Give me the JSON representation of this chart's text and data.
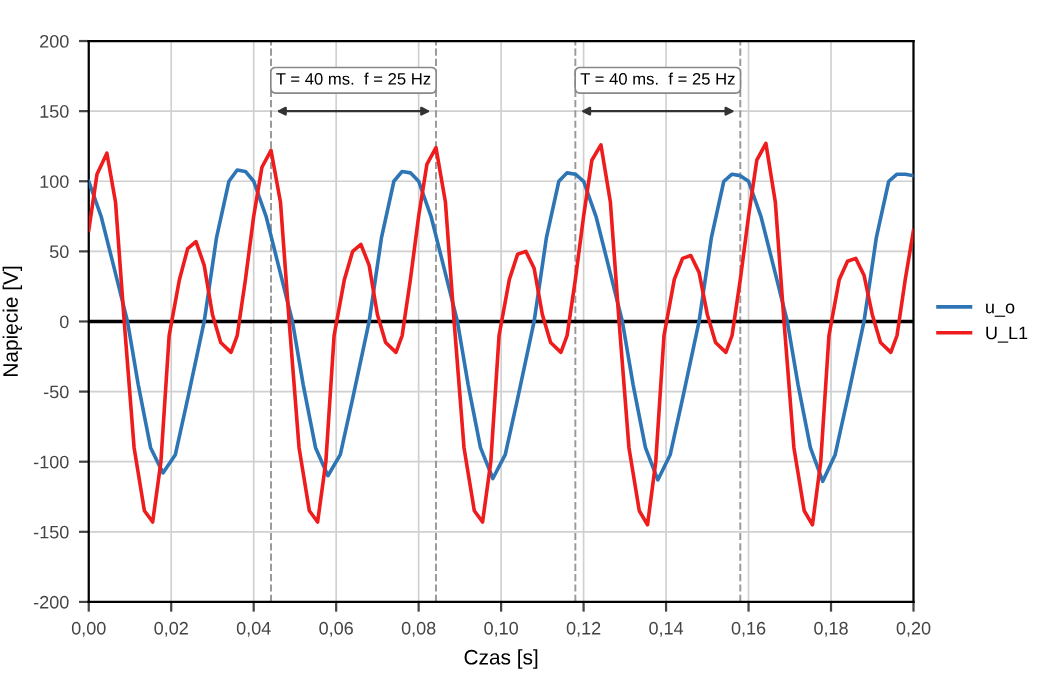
{
  "chart_data": {
    "type": "line",
    "xlabel": "Czas [s]",
    "ylabel": "Napięcie [V]",
    "xlim": [
      0,
      0.2
    ],
    "ylim": [
      -200,
      200
    ],
    "xticks": [
      {
        "value": 0,
        "label": "0,00"
      },
      {
        "value": 0.02,
        "label": "0,02"
      },
      {
        "value": 0.04,
        "label": "0,04"
      },
      {
        "value": 0.06,
        "label": "0,06"
      },
      {
        "value": 0.08,
        "label": "0,08"
      },
      {
        "value": 0.1,
        "label": "0,10"
      },
      {
        "value": 0.12,
        "label": "0,12"
      },
      {
        "value": 0.14,
        "label": "0,14"
      },
      {
        "value": 0.16,
        "label": "0,16"
      },
      {
        "value": 0.18,
        "label": "0,18"
      },
      {
        "value": 0.2,
        "label": "0,20"
      }
    ],
    "yticks": [
      -200,
      -150,
      -100,
      -50,
      0,
      50,
      100,
      150,
      200
    ],
    "grid": true,
    "legend": "right",
    "line_style": "solid",
    "series": [
      {
        "name": "u_o",
        "color": "#2e75b6",
        "x": [
          0,
          0.003,
          0.006,
          0.0094,
          0.012,
          0.015,
          0.018,
          0.021,
          0.024,
          0.028,
          0.031,
          0.034,
          0.036,
          0.038,
          0.04,
          0.043,
          0.046,
          0.0494,
          0.052,
          0.055,
          0.058,
          0.061,
          0.064,
          0.068,
          0.071,
          0.074,
          0.076,
          0.078,
          0.08,
          0.083,
          0.086,
          0.0894,
          0.092,
          0.095,
          0.098,
          0.101,
          0.104,
          0.108,
          0.111,
          0.114,
          0.116,
          0.118,
          0.12,
          0.123,
          0.126,
          0.1294,
          0.132,
          0.135,
          0.138,
          0.141,
          0.144,
          0.148,
          0.151,
          0.154,
          0.156,
          0.158,
          0.16,
          0.163,
          0.166,
          0.1694,
          0.172,
          0.175,
          0.178,
          0.181,
          0.184,
          0.188,
          0.191,
          0.194,
          0.196,
          0.198,
          0.2
        ],
        "values": [
          100,
          75,
          40,
          0,
          -45,
          -90,
          -108,
          -95,
          -55,
          0,
          60,
          100,
          108,
          107,
          100,
          75,
          40,
          0,
          -45,
          -90,
          -110,
          -95,
          -55,
          0,
          60,
          100,
          107,
          106,
          100,
          75,
          40,
          0,
          -45,
          -90,
          -112,
          -95,
          -55,
          0,
          60,
          100,
          106,
          105,
          100,
          75,
          40,
          0,
          -45,
          -90,
          -113,
          -95,
          -55,
          0,
          60,
          100,
          105,
          104,
          100,
          75,
          40,
          0,
          -45,
          -90,
          -114,
          -95,
          -55,
          0,
          60,
          100,
          105,
          105,
          104
        ]
      },
      {
        "name": "U_L1",
        "color": "#ee1c1c",
        "x": [
          0,
          0.002,
          0.0044,
          0.0065,
          0.0086,
          0.011,
          0.0135,
          0.0155,
          0.0175,
          0.0195,
          0.022,
          0.024,
          0.026,
          0.028,
          0.03,
          0.032,
          0.0345,
          0.036,
          0.038,
          0.04,
          0.042,
          0.0442,
          0.0465,
          0.0486,
          0.051,
          0.0535,
          0.0555,
          0.0575,
          0.0595,
          0.062,
          0.064,
          0.066,
          0.068,
          0.07,
          0.072,
          0.0745,
          0.076,
          0.078,
          0.08,
          0.082,
          0.0842,
          0.0865,
          0.0886,
          0.091,
          0.0935,
          0.0955,
          0.0975,
          0.0995,
          0.102,
          0.104,
          0.106,
          0.108,
          0.11,
          0.112,
          0.1145,
          0.116,
          0.118,
          0.12,
          0.122,
          0.1242,
          0.1265,
          0.1286,
          0.131,
          0.1335,
          0.1355,
          0.1375,
          0.1395,
          0.142,
          0.144,
          0.146,
          0.148,
          0.15,
          0.152,
          0.1545,
          0.156,
          0.158,
          0.16,
          0.162,
          0.1642,
          0.1665,
          0.1686,
          0.171,
          0.1735,
          0.1755,
          0.1775,
          0.1795,
          0.182,
          0.184,
          0.186,
          0.188,
          0.19,
          0.192,
          0.1945,
          0.196,
          0.198,
          0.2
        ],
        "values": [
          65,
          105,
          120,
          85,
          0,
          -90,
          -135,
          -143,
          -100,
          -10,
          30,
          52,
          57,
          40,
          5,
          -15,
          -22,
          -10,
          30,
          75,
          110,
          122,
          85,
          0,
          -90,
          -135,
          -143,
          -100,
          -10,
          30,
          50,
          55,
          40,
          5,
          -15,
          -22,
          -10,
          30,
          75,
          112,
          124,
          85,
          0,
          -90,
          -135,
          -143,
          -100,
          -10,
          30,
          48,
          50,
          38,
          5,
          -15,
          -22,
          -10,
          30,
          75,
          115,
          126,
          85,
          0,
          -90,
          -135,
          -145,
          -100,
          -10,
          30,
          45,
          47,
          35,
          5,
          -15,
          -22,
          -10,
          30,
          75,
          115,
          127,
          85,
          0,
          -90,
          -135,
          -145,
          -100,
          -10,
          30,
          43,
          45,
          33,
          5,
          -15,
          -22,
          -10,
          30,
          65
        ]
      }
    ],
    "ref_lines": [
      {
        "axis": "y",
        "value": 0,
        "color": "#000000",
        "line_style": "solid"
      },
      {
        "axis": "x",
        "value": 0.0442,
        "color": "#999999",
        "line_style": "dashed"
      },
      {
        "axis": "x",
        "value": 0.0842,
        "color": "#999999",
        "line_style": "dashed"
      },
      {
        "axis": "x",
        "value": 0.118,
        "color": "#999999",
        "line_style": "dashed"
      },
      {
        "axis": "x",
        "value": 0.158,
        "color": "#999999",
        "line_style": "dashed"
      }
    ],
    "annotations": [
      "T = 40 ms.  f = 25 Hz",
      "T = 40 ms.  f = 25 Hz"
    ]
  }
}
